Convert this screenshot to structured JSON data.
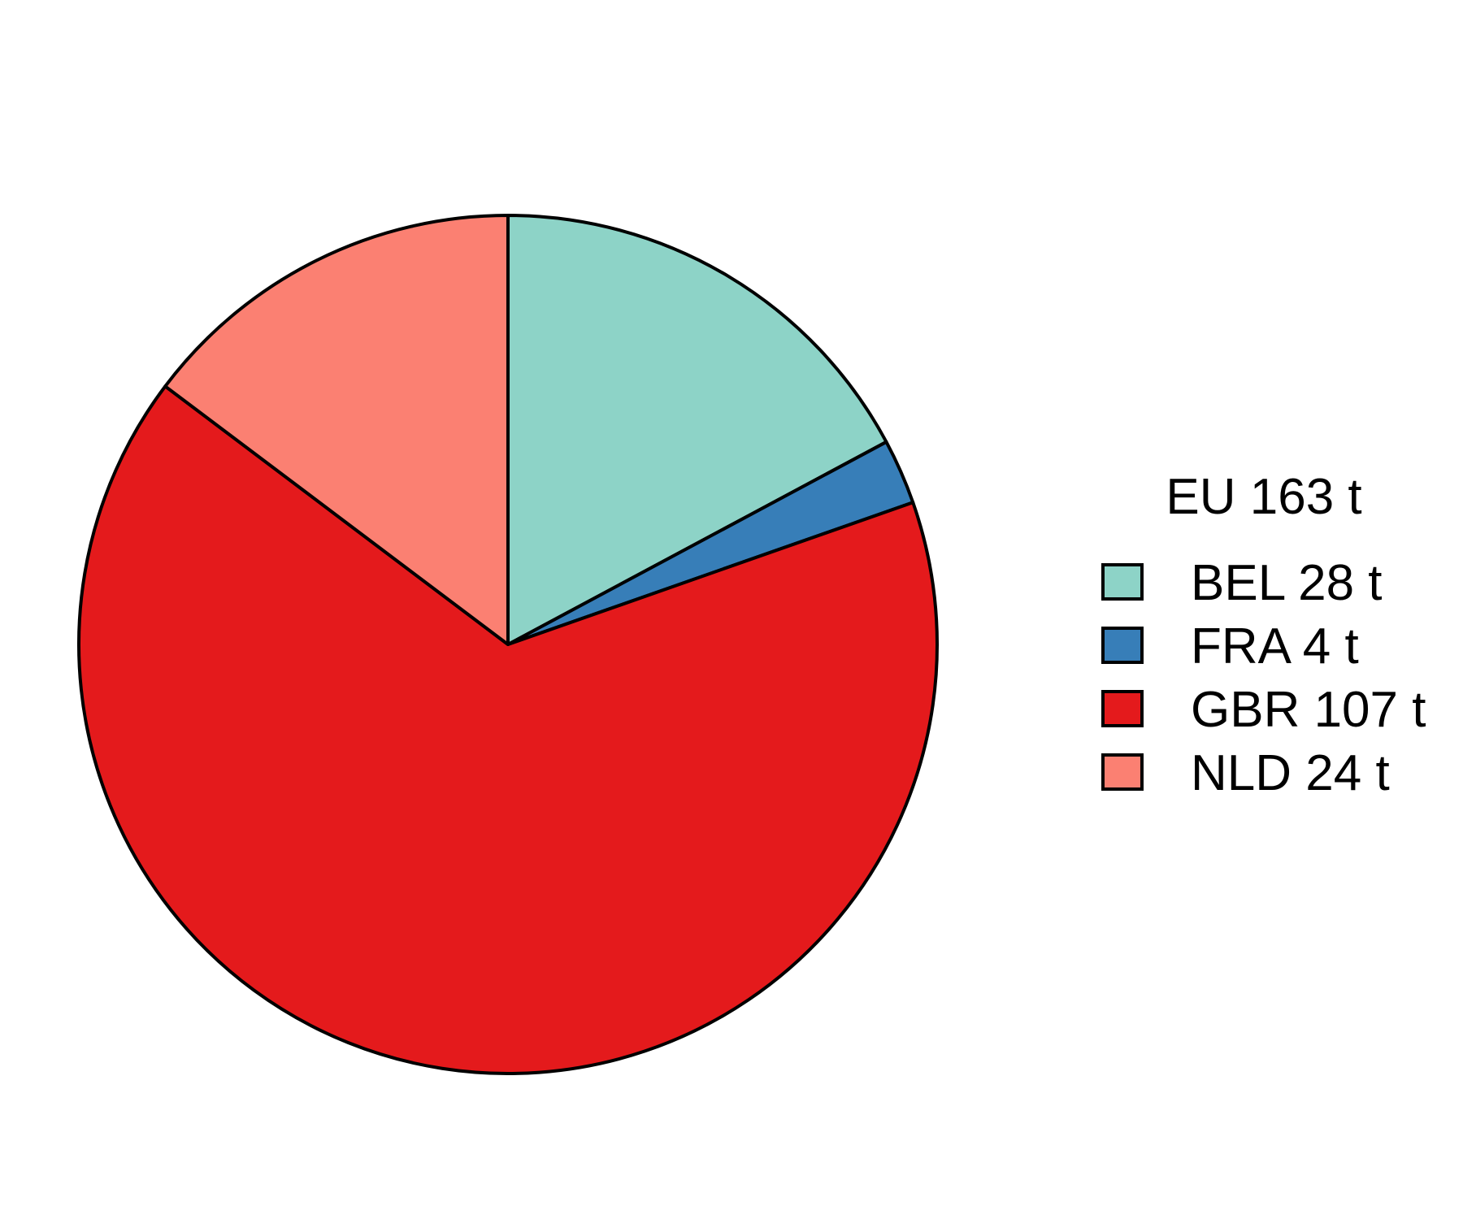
{
  "chart_data": {
    "type": "pie",
    "legend_title": "EU 163 t",
    "legend_position": "right",
    "start_angle": "12 o'clock",
    "direction": "clockwise",
    "unit": "t",
    "slices": [
      {
        "category": "BEL",
        "value": 28,
        "label": "BEL 28 t",
        "color": "#8DD3C7"
      },
      {
        "category": "FRA",
        "value": 4,
        "label": "FRA 4 t",
        "color": "#377EB8"
      },
      {
        "category": "GBR",
        "value": 107,
        "label": "GBR 107 t",
        "color": "#E41A1C"
      },
      {
        "category": "NLD",
        "value": 24,
        "label": "NLD 24 t",
        "color": "#FB8072"
      }
    ]
  }
}
